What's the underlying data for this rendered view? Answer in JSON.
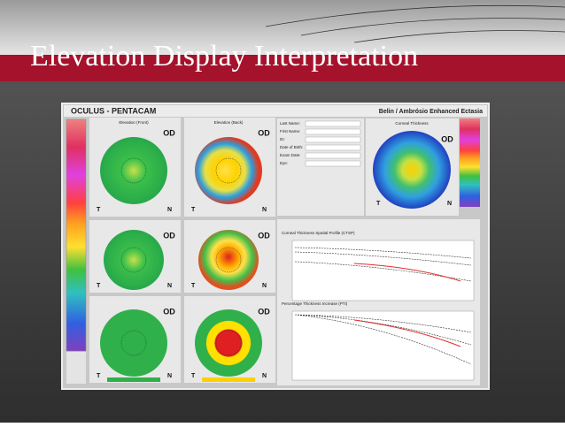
{
  "slide": {
    "title": "Elevation Display Interpretation"
  },
  "screenshot": {
    "app": "OCULUS - PENTACAM",
    "module": "Belin / Ambrósio Enhanced Ectasia",
    "orientation": {
      "left": "T",
      "right": "N"
    },
    "maps": [
      {
        "title": "Elevation (Front)",
        "eye": "OD"
      },
      {
        "title": "Elevation (Back)",
        "eye": "OD"
      },
      {
        "eye": "OD"
      },
      {
        "eye": "OD"
      },
      {
        "eye": "OD"
      },
      {
        "eye": "OD"
      }
    ],
    "form": [
      "Last Name:",
      "First Name:",
      "ID:",
      "Date of Birth:",
      "Exam Date:",
      "Eye:"
    ],
    "thickness_map": {
      "title": "Corneal Thickness",
      "eye": "OD"
    },
    "graphs": [
      {
        "title": "Corneal Thickness Spatial Profile (CTSP)"
      },
      {
        "title": "Percentage Thickness Increase (PTI)"
      }
    ]
  }
}
